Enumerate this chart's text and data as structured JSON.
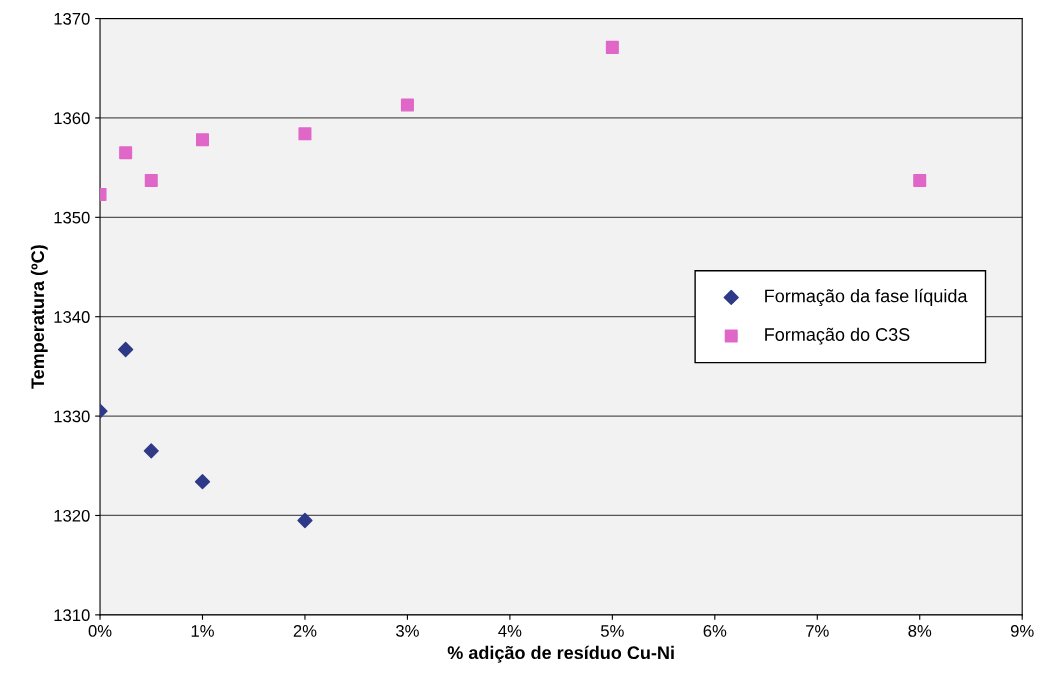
{
  "chart_data": {
    "type": "scatter",
    "xlabel": "% adição de resíduo Cu-Ni",
    "ylabel": "Temperatura (ºC)",
    "xlim": [
      0,
      9
    ],
    "xticks": [
      {
        "value": 0,
        "label": "0%"
      },
      {
        "value": 1,
        "label": "1%"
      },
      {
        "value": 2,
        "label": "2%"
      },
      {
        "value": 3,
        "label": "3%"
      },
      {
        "value": 4,
        "label": "4%"
      },
      {
        "value": 5,
        "label": "5%"
      },
      {
        "value": 6,
        "label": "6%"
      },
      {
        "value": 7,
        "label": "7%"
      },
      {
        "value": 8,
        "label": "8%"
      },
      {
        "value": 9,
        "label": "9%"
      }
    ],
    "ylim": [
      1310,
      1370
    ],
    "yticks": [
      1310,
      1320,
      1330,
      1340,
      1350,
      1360,
      1370
    ],
    "grid": "y",
    "legend": "right",
    "series": [
      {
        "name": "Formação da fase líquida",
        "color": "#2e3a87",
        "marker": "diamond",
        "x": [
          0,
          0.25,
          0.5,
          1,
          2
        ],
        "values": [
          1330.5,
          1336.7,
          1326.5,
          1323.4,
          1319.5
        ]
      },
      {
        "name": "Formação do C3S",
        "color": "#e066c8",
        "marker": "square",
        "x": [
          0,
          0.25,
          0.5,
          1,
          2,
          3,
          5,
          8
        ],
        "values": [
          1352.3,
          1356.5,
          1353.7,
          1357.8,
          1358.4,
          1361.3,
          1367.1,
          1353.7
        ]
      }
    ]
  }
}
